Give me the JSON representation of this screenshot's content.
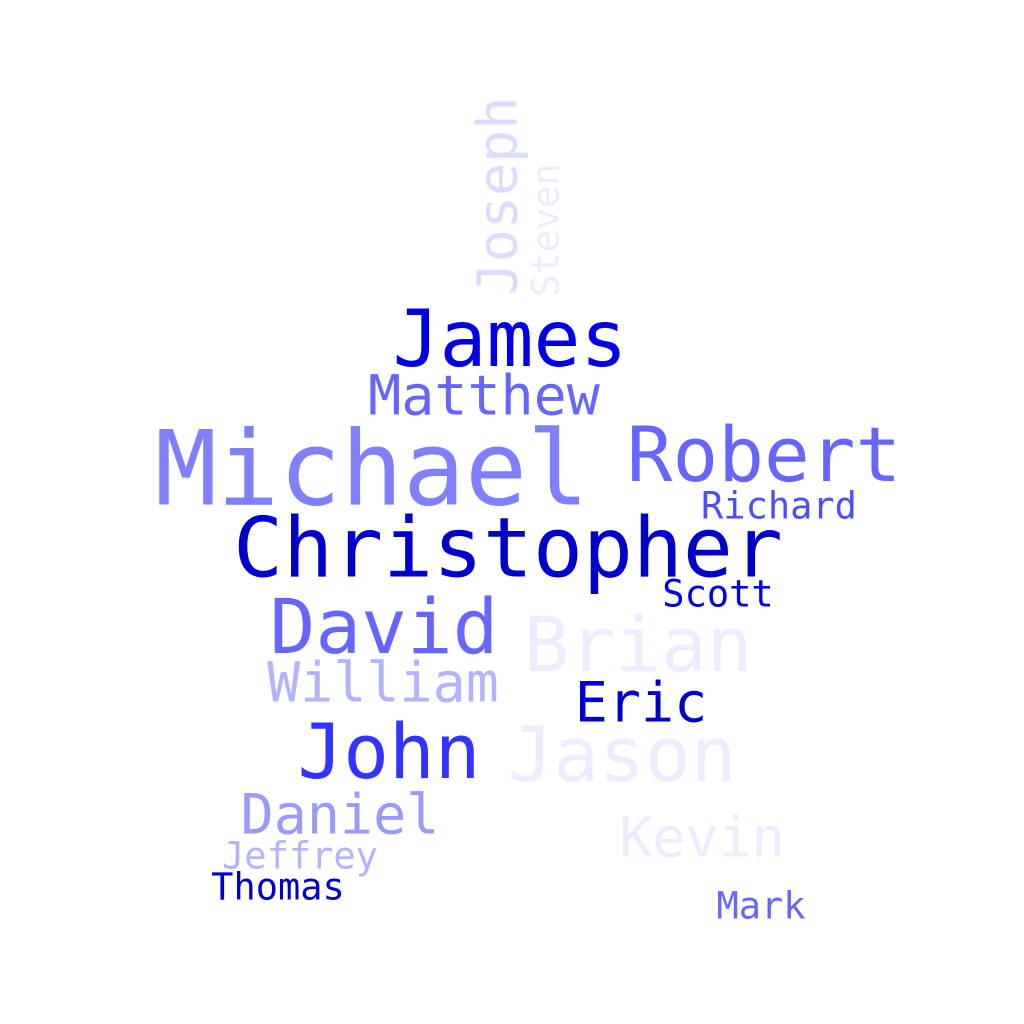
{
  "words": [
    {
      "id": "michael",
      "text": "Michael",
      "color": "#8080ff"
    },
    {
      "id": "christopher",
      "text": "Christopher",
      "color": "#0000cc"
    },
    {
      "id": "james",
      "text": "James",
      "color": "#0000e6"
    },
    {
      "id": "robert",
      "text": "Robert",
      "color": "#6666ff"
    },
    {
      "id": "david",
      "text": "David",
      "color": "#6666ff"
    },
    {
      "id": "brian",
      "text": "Brian",
      "color": "#ececff"
    },
    {
      "id": "john",
      "text": "John",
      "color": "#3333ff"
    },
    {
      "id": "jason",
      "text": "Jason",
      "color": "#ececff"
    },
    {
      "id": "matthew",
      "text": "Matthew",
      "color": "#6666ff"
    },
    {
      "id": "william",
      "text": "William",
      "color": "#b3b3ff"
    },
    {
      "id": "eric",
      "text": "Eric",
      "color": "#0000cc"
    },
    {
      "id": "daniel",
      "text": "Daniel",
      "color": "#9999ff"
    },
    {
      "id": "kevin",
      "text": "Kevin",
      "color": "#ececff"
    },
    {
      "id": "richard",
      "text": "Richard",
      "color": "#4d4dff"
    },
    {
      "id": "scott",
      "text": "Scott",
      "color": "#0000e6"
    },
    {
      "id": "jeffrey",
      "text": "Jeffrey",
      "color": "#b3b3ff"
    },
    {
      "id": "thomas",
      "text": "Thomas",
      "color": "#0000cc"
    },
    {
      "id": "mark",
      "text": "Mark",
      "color": "#6666ff"
    },
    {
      "id": "joseph",
      "text": "Joseph",
      "color": "#dcdcff"
    },
    {
      "id": "steven",
      "text": "Steven",
      "color": "#ececff"
    }
  ]
}
